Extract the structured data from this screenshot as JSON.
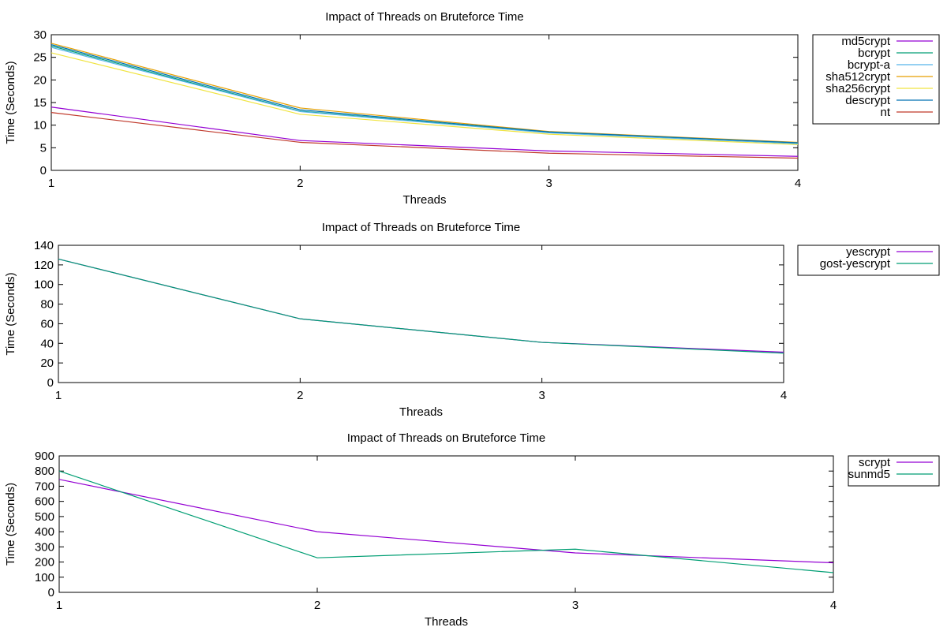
{
  "chart_data": [
    {
      "type": "line",
      "title": "Impact of Threads on Bruteforce Time",
      "xlabel": "Threads",
      "ylabel": "Time (Seconds)",
      "xlim": [
        1,
        4
      ],
      "ylim": [
        0,
        30
      ],
      "x_ticks": [
        "1",
        "2",
        "3",
        "4"
      ],
      "y_ticks": [
        "0",
        "5",
        "10",
        "15",
        "20",
        "25",
        "30"
      ],
      "grid": false,
      "legend_position": "outside-right",
      "x": [
        1,
        2,
        3,
        4
      ],
      "series": [
        {
          "name": "md5crypt",
          "color": "#9400d3",
          "values": [
            14.0,
            6.6,
            4.3,
            3.1
          ]
        },
        {
          "name": "bcrypt",
          "color": "#009e73",
          "values": [
            27.5,
            13.1,
            8.4,
            6.0
          ]
        },
        {
          "name": "bcrypt-a",
          "color": "#56b4e9",
          "values": [
            27.2,
            13.0,
            8.3,
            5.9
          ]
        },
        {
          "name": "sha512crypt",
          "color": "#e69f00",
          "values": [
            28.1,
            13.8,
            8.6,
            6.2
          ]
        },
        {
          "name": "sha256crypt",
          "color": "#f0e442",
          "values": [
            26.0,
            12.4,
            8.0,
            5.7
          ]
        },
        {
          "name": "descrypt",
          "color": "#0072b2",
          "values": [
            27.8,
            13.4,
            8.5,
            6.1
          ]
        },
        {
          "name": "nt",
          "color": "#c0392b",
          "values": [
            12.8,
            6.2,
            3.8,
            2.7
          ]
        }
      ]
    },
    {
      "type": "line",
      "title": "Impact of Threads on Bruteforce Time",
      "xlabel": "Threads",
      "ylabel": "Time (Seconds)",
      "xlim": [
        1,
        4
      ],
      "ylim": [
        0,
        140
      ],
      "x_ticks": [
        "1",
        "2",
        "3",
        "4"
      ],
      "y_ticks": [
        "0",
        "20",
        "40",
        "60",
        "80",
        "100",
        "120",
        "140"
      ],
      "grid": false,
      "legend_position": "outside-right",
      "x": [
        1,
        2,
        3,
        4
      ],
      "series": [
        {
          "name": "yescrypt",
          "color": "#9400d3",
          "values": [
            126,
            65,
            41,
            31
          ]
        },
        {
          "name": "gost-yescrypt",
          "color": "#009e73",
          "values": [
            126,
            65,
            41,
            30
          ]
        }
      ]
    },
    {
      "type": "line",
      "title": "Impact of Threads on Bruteforce Time",
      "xlabel": "Threads",
      "ylabel": "Time (Seconds)",
      "xlim": [
        1,
        4
      ],
      "ylim": [
        0,
        900
      ],
      "x_ticks": [
        "1",
        "2",
        "3",
        "4"
      ],
      "y_ticks": [
        "0",
        "100",
        "200",
        "300",
        "400",
        "500",
        "600",
        "700",
        "800",
        "900"
      ],
      "grid": false,
      "legend_position": "outside-right",
      "x": [
        1,
        2,
        3,
        4
      ],
      "series": [
        {
          "name": "scrypt",
          "color": "#9400d3",
          "values": [
            745,
            400,
            260,
            195
          ]
        },
        {
          "name": "sunmd5",
          "color": "#009e73",
          "values": [
            800,
            228,
            285,
            130
          ]
        }
      ]
    }
  ]
}
